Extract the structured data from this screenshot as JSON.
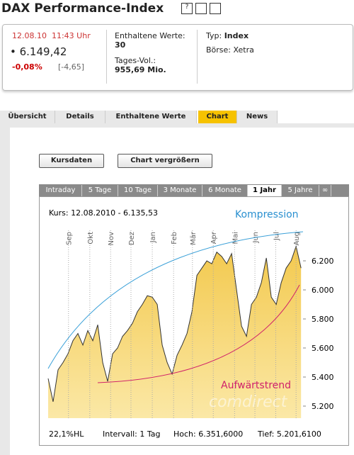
{
  "header": {
    "title": "DAX Performance-Index"
  },
  "quote": {
    "datetime": "12.08.10  11:43 Uhr",
    "price": "6.149,42",
    "change_pct": "-0,08%",
    "change_abs": "[-4,65]",
    "members_label": "Enthaltene Werte:",
    "members": "30",
    "volume_label": "Tages-Vol.:",
    "volume": "955,69 Mio.",
    "type_label": "Typ:",
    "type": "Index",
    "exchange": "Börse: Xetra"
  },
  "tabs": [
    "Übersicht",
    "Details",
    "Enthaltene Werte",
    "Chart",
    "News"
  ],
  "buttons": [
    "Kursdaten",
    "Chart vergrößern"
  ],
  "ranges": [
    "Intraday",
    "5 Tage",
    "10 Tage",
    "3 Monate",
    "6 Monate",
    "1 Jahr",
    "5 Jahre",
    "∞"
  ],
  "chart_data": {
    "type": "area",
    "subtitle": "Kurs: 12.08.2010 - 6.135,53",
    "annotations": [
      "Kompression",
      "Aufwärtstrend"
    ],
    "watermark": "comdirect",
    "footer": [
      "22,1%HL",
      "Intervall: 1 Tag",
      "Hoch: 6.351,6000",
      "Tief: 5.201,6100"
    ],
    "fill_color": "#f6d676",
    "line_color": "#333333",
    "values": [
      5390,
      5230,
      5450,
      5500,
      5560,
      5650,
      5700,
      5620,
      5720,
      5650,
      5760,
      5500,
      5370,
      5560,
      5600,
      5680,
      5720,
      5770,
      5850,
      5900,
      5960,
      5950,
      5900,
      5620,
      5500,
      5420,
      5550,
      5620,
      5700,
      5850,
      6100,
      6150,
      6200,
      6180,
      6260,
      6230,
      6180,
      6250,
      6000,
      5750,
      5680,
      5900,
      5950,
      6050,
      6220,
      5950,
      5900,
      6050,
      6150,
      6200,
      6300,
      6150
    ],
    "xlim": [
      0,
      51.4
    ],
    "xticks": [
      {
        "value": 4.1,
        "label": "Sep"
      },
      {
        "value": 8.4,
        "label": "Okt"
      },
      {
        "value": 12.6,
        "label": "Nov"
      },
      {
        "value": 16.7,
        "label": "Dez"
      },
      {
        "value": 21,
        "label": "Jan"
      },
      {
        "value": 25.3,
        "label": "Feb"
      },
      {
        "value": 29.1,
        "label": "Mär"
      },
      {
        "value": 33.3,
        "label": "Apr"
      },
      {
        "value": 37.6,
        "label": "Mai"
      },
      {
        "value": 41.7,
        "label": "Jun"
      },
      {
        "value": 45.9,
        "label": "Jul"
      },
      {
        "value": 50,
        "label": "Aug"
      }
    ],
    "ylim": [
      5117,
      6410
    ],
    "yticks": [
      {
        "value": 5200,
        "label": "5.200"
      },
      {
        "value": 5400,
        "label": "5.400"
      },
      {
        "value": 5600,
        "label": "5.600"
      },
      {
        "value": 5800,
        "label": "5.800"
      },
      {
        "value": 6000,
        "label": "6.000"
      },
      {
        "value": 6200,
        "label": "6.200"
      }
    ]
  }
}
